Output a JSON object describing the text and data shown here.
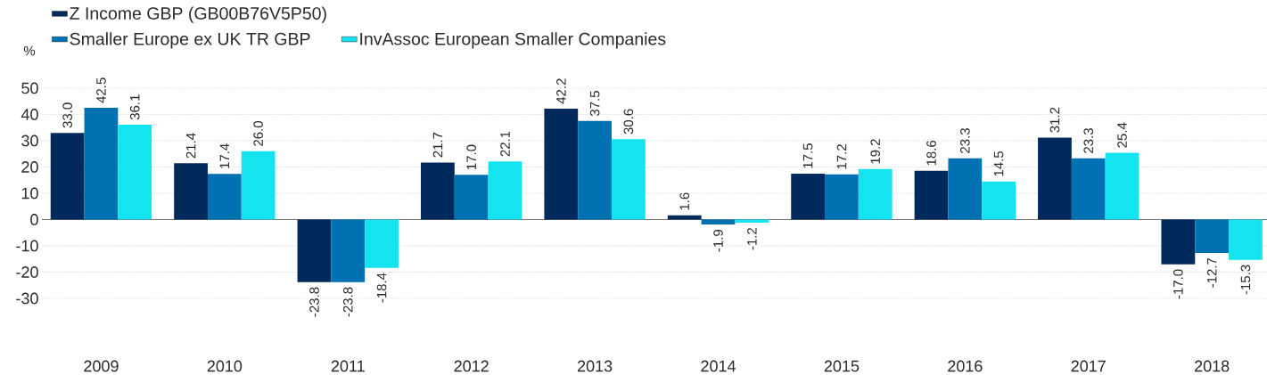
{
  "chart_data": {
    "type": "bar",
    "ylabel": "%",
    "categories": [
      "2009",
      "2010",
      "2011",
      "2012",
      "2013",
      "2014",
      "2015",
      "2016",
      "2017",
      "2018"
    ],
    "series": [
      {
        "name": "Z Income GBP (GB00B76V5P50)",
        "color": "#002a5c",
        "values": [
          33.0,
          21.4,
          -23.8,
          21.7,
          42.2,
          1.6,
          17.5,
          18.6,
          31.2,
          -17.0
        ],
        "value_labels": [
          "33.0",
          "21.4",
          "-23.8",
          "21.7",
          "42.2",
          "1.6",
          "17.5",
          "18.6",
          "31.2",
          "-17.0"
        ]
      },
      {
        "name": "Smaller Europe ex UK TR GBP",
        "color": "#0072b4",
        "values": [
          42.5,
          17.4,
          -23.8,
          17.0,
          37.5,
          -1.9,
          17.2,
          23.3,
          23.3,
          -12.7
        ],
        "value_labels": [
          "42.5",
          "17.4",
          "-23.8",
          "17.0",
          "37.5",
          "-1.9",
          "17.2",
          "23.3",
          "23.3",
          "-12.7"
        ]
      },
      {
        "name": "InvAssoc European Smaller Companies",
        "color": "#14e4ef",
        "values": [
          36.1,
          26.0,
          -18.4,
          22.1,
          30.6,
          -1.2,
          19.2,
          14.5,
          25.4,
          -15.3
        ],
        "value_labels": [
          "36.1",
          "26.0",
          "-18.4",
          "22.1",
          "30.6",
          "-1.2",
          "19.2",
          "14.5",
          "25.4",
          "-15.3"
        ]
      }
    ],
    "ylim": [
      -30,
      50
    ],
    "yticks": [
      -30,
      -20,
      -10,
      0,
      10,
      20,
      30,
      40,
      50
    ],
    "grid": "y",
    "legend": "top left"
  }
}
